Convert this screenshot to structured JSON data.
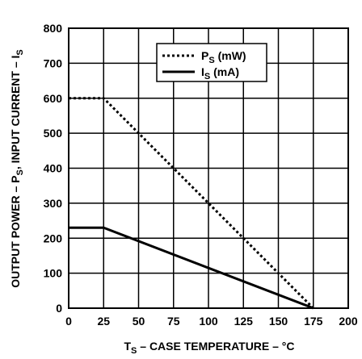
{
  "chart_data": {
    "type": "line",
    "xlabel": {
      "main": "T",
      "sub": "S",
      "rest": " – CASE TEMPERATURE – °C"
    },
    "ylabel": {
      "p1": "OUTPUT POWER – P",
      "sub1": "S",
      "p2": ", INPUT CURRENT – I",
      "sub2": "S"
    },
    "xlim": [
      0,
      200
    ],
    "ylim": [
      0,
      800
    ],
    "x_ticks": [
      "0",
      "25",
      "50",
      "75",
      "100",
      "125",
      "150",
      "175",
      "200"
    ],
    "y_ticks": [
      "0",
      "100",
      "200",
      "300",
      "400",
      "500",
      "600",
      "700",
      "800"
    ],
    "grid": true,
    "legend_position": "top-right",
    "series": [
      {
        "name": {
          "main": "P",
          "sub": "S",
          "rest": " (mW)"
        },
        "style": "dotted",
        "x": [
          0,
          25,
          175
        ],
        "y": [
          600,
          600,
          0
        ]
      },
      {
        "name": {
          "main": "I",
          "sub": "S",
          "rest": " (mA)"
        },
        "style": "solid",
        "x": [
          0,
          25,
          175
        ],
        "y": [
          230,
          230,
          0
        ]
      }
    ]
  }
}
